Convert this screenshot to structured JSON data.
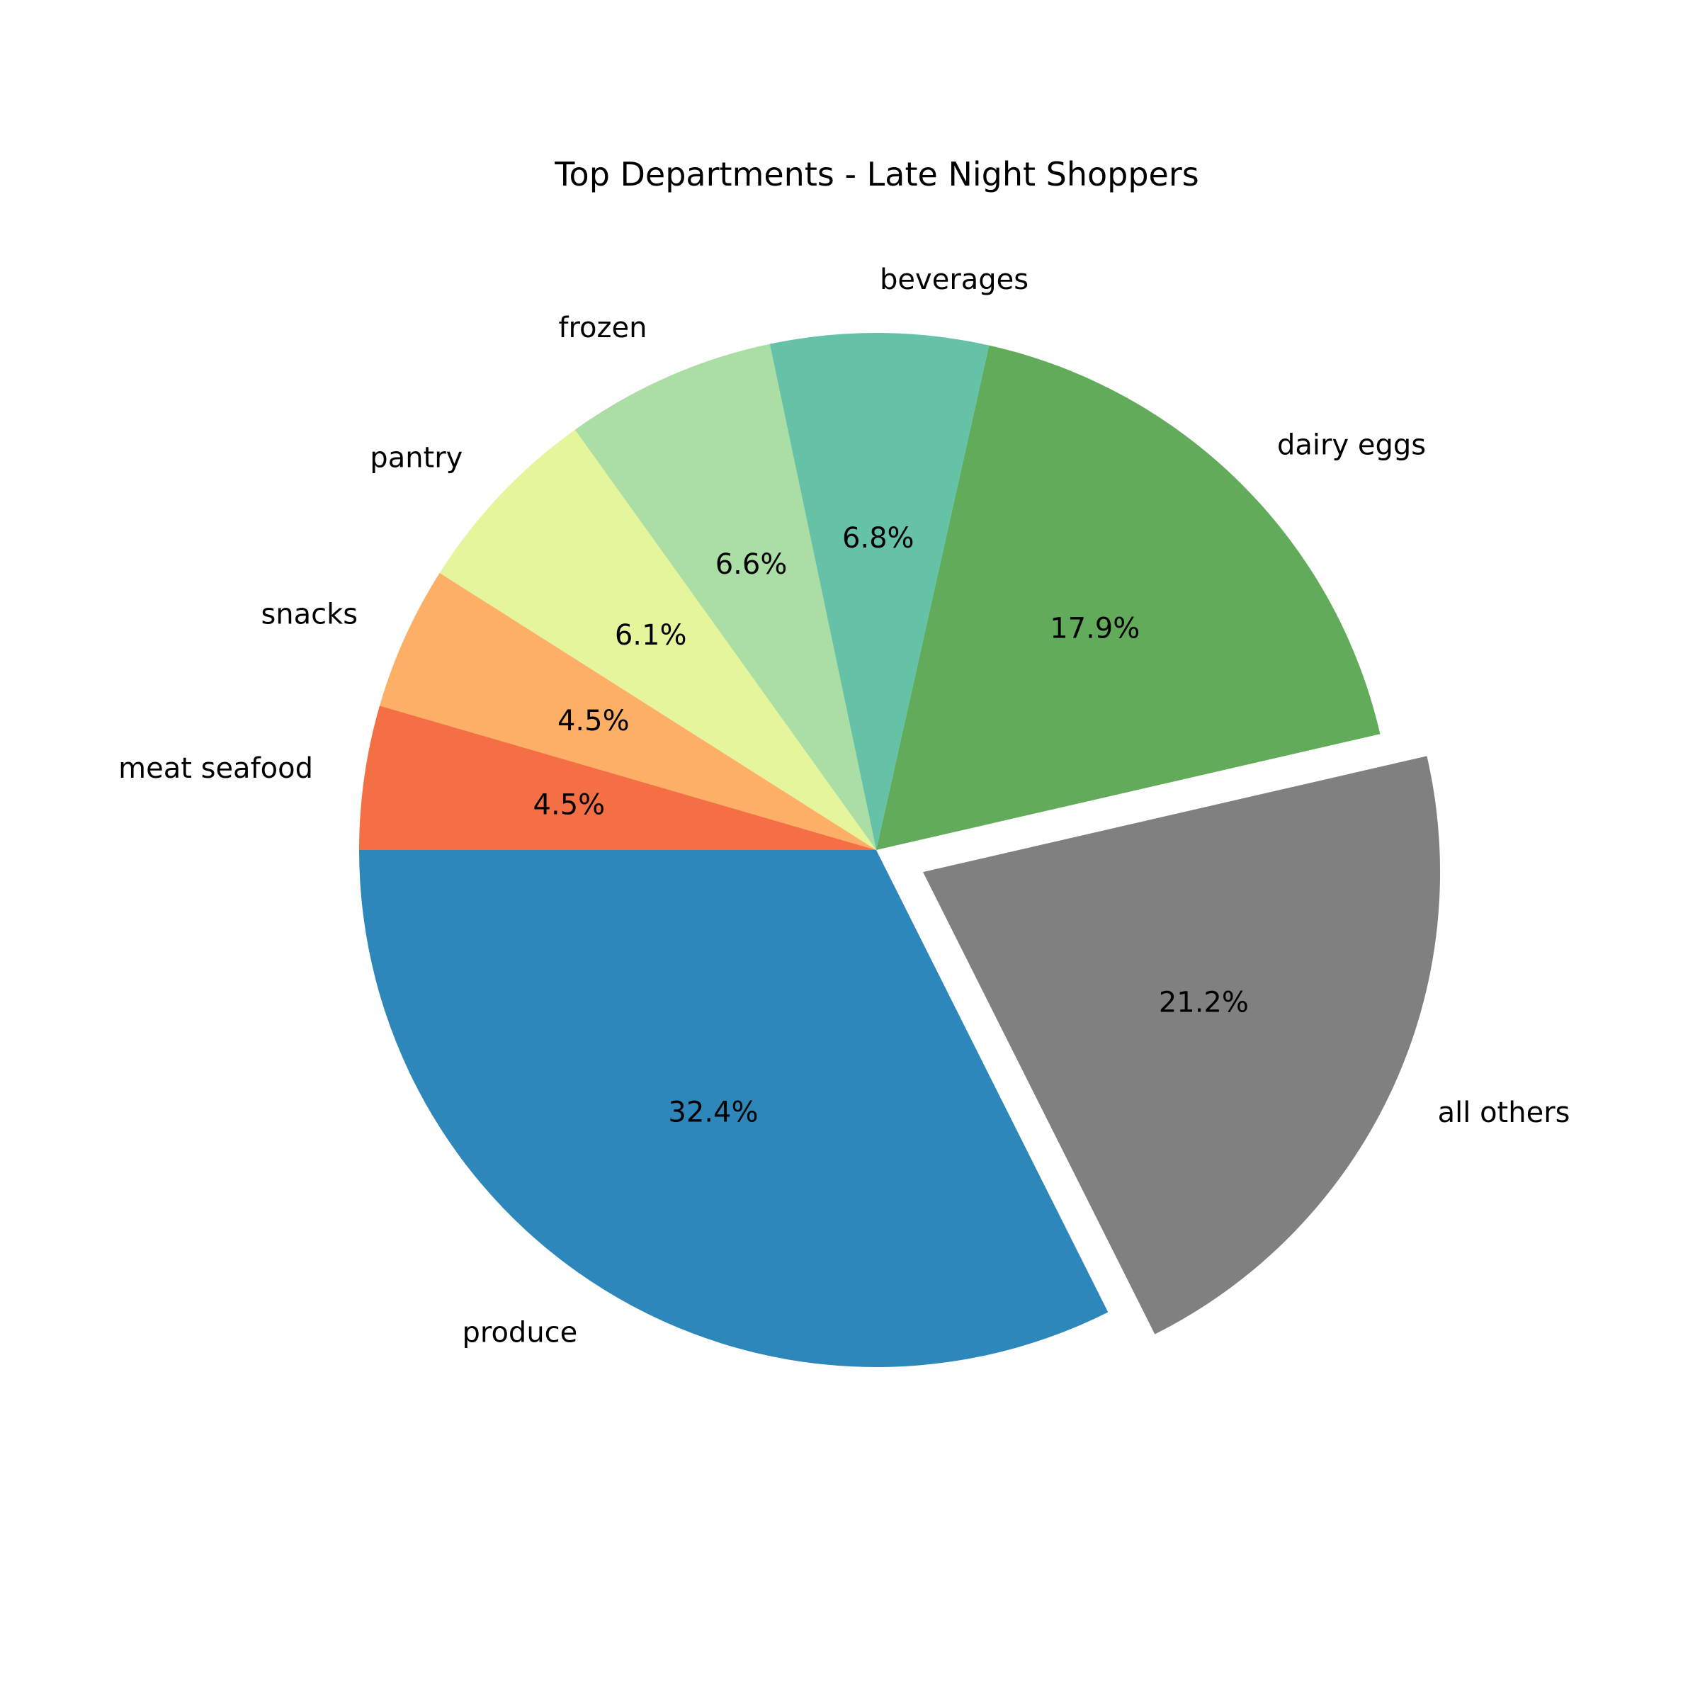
{
  "chart_data": {
    "type": "pie",
    "title": "Top Departments - Late Night Shoppers",
    "slices": [
      {
        "label": "produce",
        "value": 32.4,
        "pct_label": "32.4%",
        "color": "#2e87ba",
        "exploded": false
      },
      {
        "label": "all others",
        "value": 21.2,
        "pct_label": "21.2%",
        "color": "#808080",
        "exploded": true
      },
      {
        "label": "dairy eggs",
        "value": 17.9,
        "pct_label": "17.9%",
        "color": "#62ab5a",
        "exploded": false
      },
      {
        "label": "beverages",
        "value": 6.8,
        "pct_label": "6.8%",
        "color": "#65c2a6",
        "exploded": false
      },
      {
        "label": "frozen",
        "value": 6.6,
        "pct_label": "6.6%",
        "color": "#abdea5",
        "exploded": false
      },
      {
        "label": "pantry",
        "value": 6.1,
        "pct_label": "6.1%",
        "color": "#e5f59c",
        "exploded": false
      },
      {
        "label": "snacks",
        "value": 4.5,
        "pct_label": "4.5%",
        "color": "#fdaf66",
        "exploded": false
      },
      {
        "label": "meat seafood",
        "value": 4.5,
        "pct_label": "4.5%",
        "color": "#f56f45",
        "exploded": false
      }
    ],
    "start_angle_deg": 180,
    "direction": "counterclockwise"
  }
}
